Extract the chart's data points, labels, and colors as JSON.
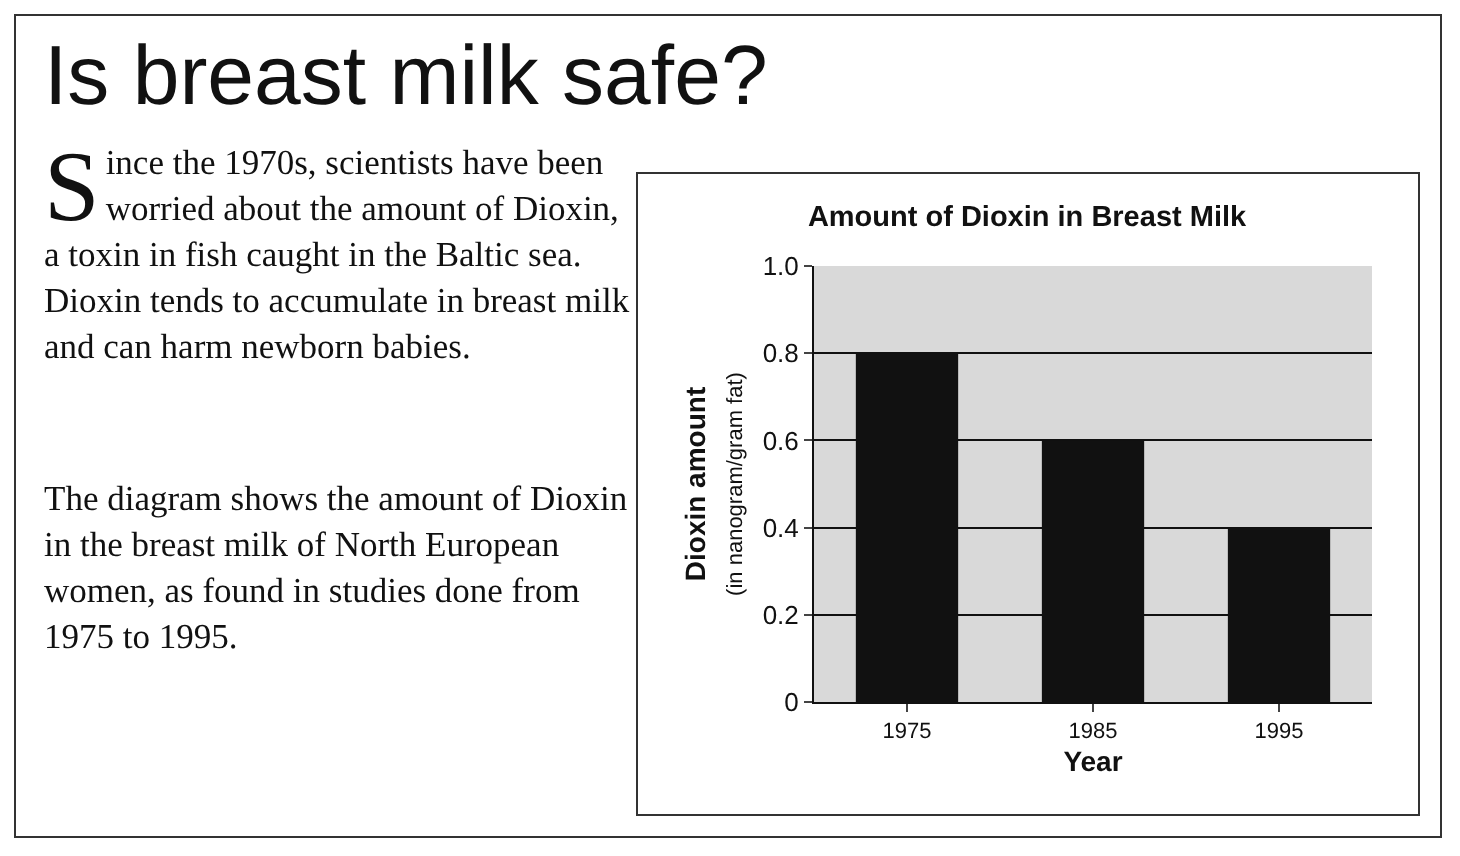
{
  "chart_data": {
    "type": "bar",
    "title": "Amount of Dioxin in Breast Milk",
    "xlabel": "Year",
    "ylabel": "Dioxin amount\n(in nanogram/gram fat)",
    "categories": [
      "1975",
      "1985",
      "1995"
    ],
    "values": [
      0.8,
      0.6,
      0.4
    ],
    "color": "#111111",
    "ylim": [
      0,
      1
    ],
    "yticks": [
      0,
      0.2,
      0.4,
      0.6,
      0.8,
      {
        "value": 1,
        "label": "1.0"
      }
    ],
    "grid": "y",
    "legend": false,
    "annotations": [
      "Is breast milk safe?",
      "Since the 1970s, scientists have been worried about the amount of Dioxin, a toxin in fish caught in the Baltic sea. Dioxin tends to accumulate in breast milk and can harm newborn babies.",
      "The diagram shows the amount of Dioxin in the breast milk of North European women, as found in studies done from 1975 to 1995."
    ]
  }
}
